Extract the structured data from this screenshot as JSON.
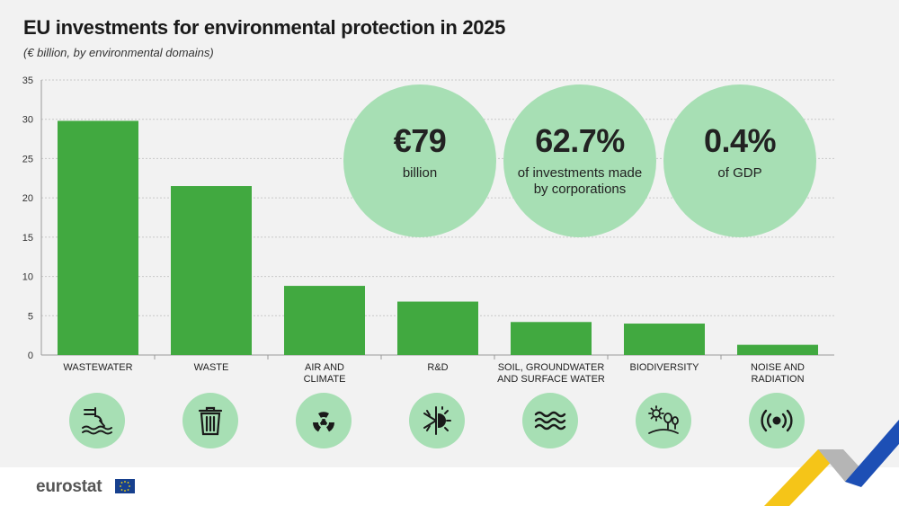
{
  "header": {
    "title": "EU investments for environmental protection in 2025",
    "subtitle": "(€ billion, by environmental domains)"
  },
  "kpis": [
    {
      "big": "€79",
      "small": "billion"
    },
    {
      "big": "62.7%",
      "small": "of investments made by corporations"
    },
    {
      "big": "0.4%",
      "small": "of GDP"
    }
  ],
  "chart_data": {
    "type": "bar",
    "title": "EU investments for environmental protection in 2025",
    "subtitle": "(€ billion, by environmental domains)",
    "categories": [
      [
        "WASTEWATER"
      ],
      [
        "WASTE"
      ],
      [
        "AIR AND",
        "CLIMATE"
      ],
      [
        "R&D"
      ],
      [
        "SOIL, GROUNDWATER",
        "AND SURFACE WATER"
      ],
      [
        "BIODIVERSITY"
      ],
      [
        "NOISE AND",
        "RADIATION"
      ]
    ],
    "values": [
      29.8,
      21.5,
      8.8,
      6.8,
      4.2,
      4.0,
      1.3
    ],
    "ylim": [
      0,
      35
    ],
    "yticks": [
      0,
      5,
      10,
      15,
      20,
      25,
      30,
      35
    ],
    "grid": true,
    "bar_color": "#41a940"
  },
  "icons": [
    "wastewater-icon",
    "trash-bin-icon",
    "radiation-icon",
    "sun-snowflake-icon",
    "water-waves-icon",
    "sun-trees-icon",
    "sound-waves-icon"
  ],
  "colors": {
    "bar": "#41a940",
    "circle": "#a7dfb4",
    "background": "#f2f2f2"
  },
  "footer": {
    "brand": "eurostat"
  }
}
